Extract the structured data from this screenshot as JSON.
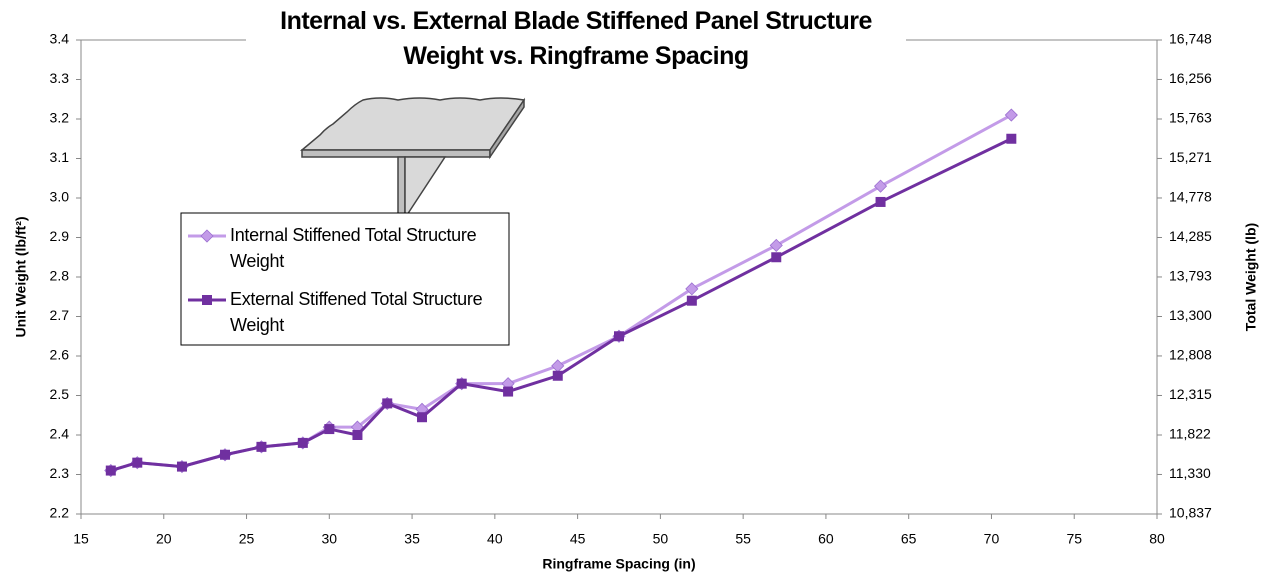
{
  "chart_data": {
    "type": "line",
    "title": "Internal vs. External Blade Stiffened Panel Structure\nWeight vs. Ringframe Spacing",
    "x_label": "Ringframe Spacing (in)",
    "y_label": "Unit Weight (lb/ft²)",
    "y2_label": "Total Weight (lb)",
    "x": [
      16.8,
      18.4,
      21.1,
      23.7,
      25.9,
      28.4,
      30.0,
      31.7,
      33.5,
      35.6,
      38.0,
      40.8,
      43.8,
      47.5,
      51.9,
      57.0,
      63.3,
      71.2
    ],
    "series": [
      {
        "name": "Internal Stiffened Total Structure Weight",
        "color": "#c39be8",
        "marker": "diamond",
        "values": [
          2.31,
          2.33,
          2.32,
          2.35,
          2.37,
          2.38,
          2.42,
          2.42,
          2.48,
          2.465,
          2.53,
          2.53,
          2.575,
          2.65,
          2.77,
          2.88,
          3.03,
          3.21
        ]
      },
      {
        "name": "External Stiffened Total Structure Weight",
        "color": "#7030a0",
        "marker": "square",
        "values": [
          2.31,
          2.33,
          2.32,
          2.35,
          2.37,
          2.38,
          2.415,
          2.4,
          2.48,
          2.445,
          2.53,
          2.51,
          2.55,
          2.65,
          2.74,
          2.85,
          2.99,
          3.15
        ]
      }
    ],
    "xlim": [
      15,
      80
    ],
    "xticks": [
      15,
      20,
      25,
      30,
      35,
      40,
      45,
      50,
      55,
      60,
      65,
      70,
      75,
      80
    ],
    "ylim": [
      2.2,
      3.4
    ],
    "yticks": [
      2.2,
      2.3,
      2.4,
      2.5,
      2.6,
      2.7,
      2.8,
      2.9,
      {
        "value": 3,
        "label": "3.0"
      },
      3.1,
      3.2,
      3.3,
      3.4
    ],
    "y2lim": [
      10837,
      16748
    ],
    "y2ticks": [
      {
        "value": 10837,
        "label": "10,837"
      },
      {
        "value": 11330,
        "label": "11,330"
      },
      {
        "value": 11822,
        "label": "11,822"
      },
      {
        "value": 12315,
        "label": "12,315"
      },
      {
        "value": 12808,
        "label": "12,808"
      },
      {
        "value": 13300,
        "label": "13,300"
      },
      {
        "value": 13793,
        "label": "13,793"
      },
      {
        "value": 14285,
        "label": "14,285"
      },
      {
        "value": 14778,
        "label": "14,778"
      },
      {
        "value": 15271,
        "label": "15,271"
      },
      {
        "value": 15763,
        "label": "15,763"
      },
      {
        "value": 16256,
        "label": "16,256"
      },
      {
        "value": 16748,
        "label": "16,748"
      }
    ],
    "grid": false
  }
}
